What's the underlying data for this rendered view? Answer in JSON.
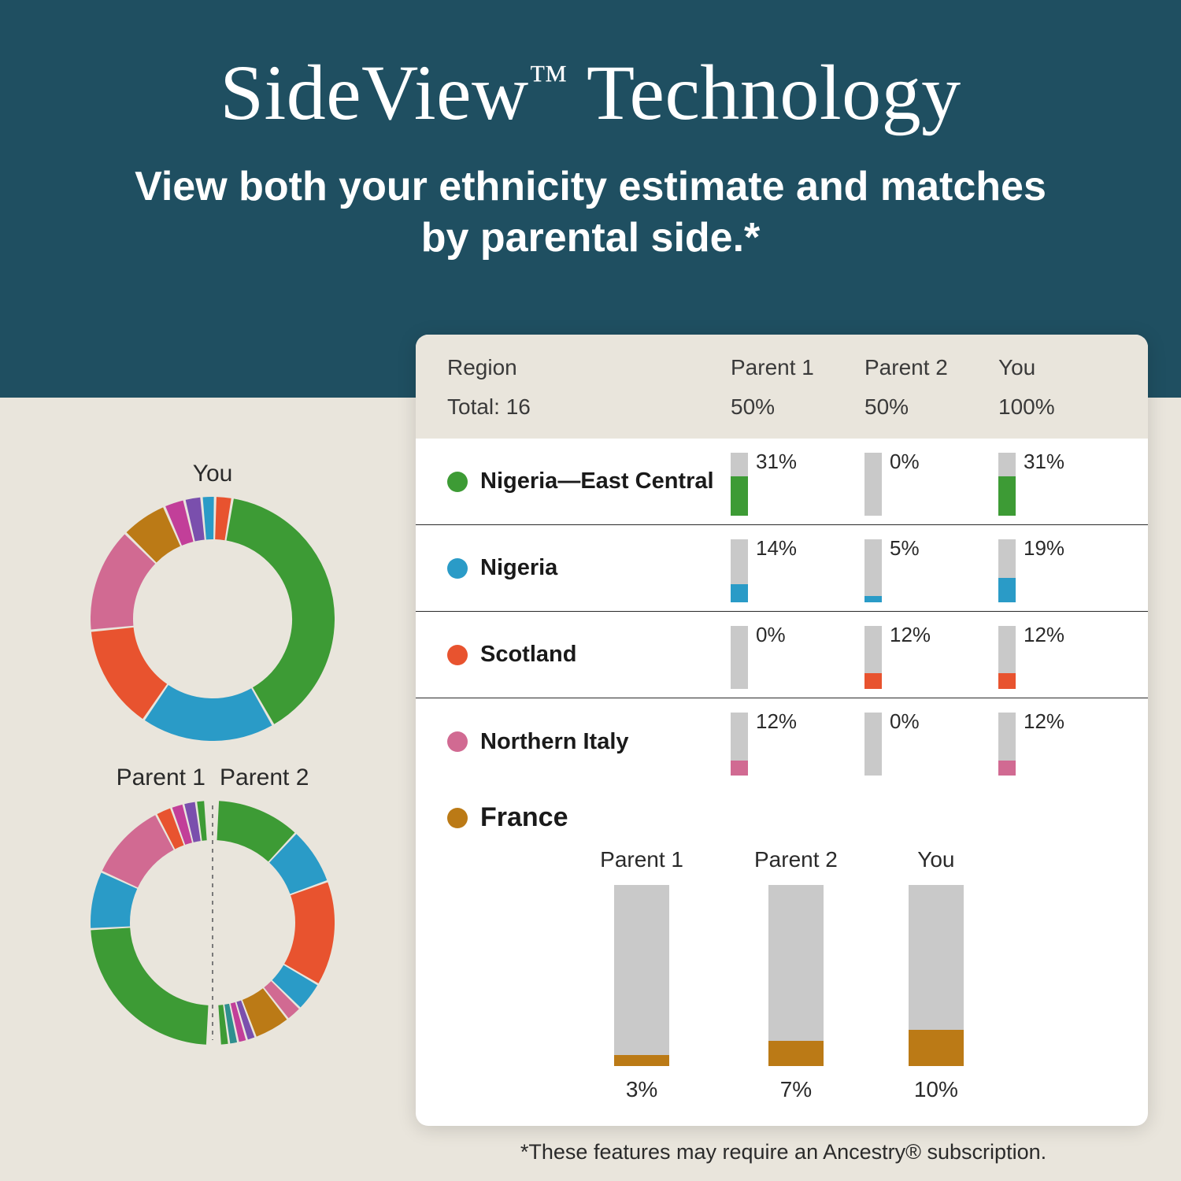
{
  "hero": {
    "title_main": "SideView",
    "title_tm": "™",
    "title_tail": " Technology",
    "subtitle": "View both your ethnicity estimate and matches by parental side.*"
  },
  "colors": {
    "green": "#3d9b35",
    "blue": "#2a9bc7",
    "orange": "#e8532f",
    "pink": "#d16a92",
    "brown": "#bb7a16",
    "purple": "#7a4fad",
    "magenta": "#c23f99",
    "teal": "#2f8f8f",
    "bar_bg": "#c9c9c9",
    "text": "#2a2a2a",
    "card_bg": "#ffffff",
    "page_bg": "#e9e5dc",
    "hero_bg": "#1f4f61"
  },
  "donut_you": {
    "label": "You",
    "size": 310,
    "stroke": 54,
    "segments": [
      {
        "color": "#3d9b35",
        "pct": 40
      },
      {
        "color": "#2a9bc7",
        "pct": 18
      },
      {
        "color": "#e8532f",
        "pct": 14
      },
      {
        "color": "#d16a92",
        "pct": 14
      },
      {
        "color": "#bb7a16",
        "pct": 6
      },
      {
        "color": "#c23f99",
        "pct": 2.5
      },
      {
        "color": "#7a4fad",
        "pct": 2
      },
      {
        "color": "#2a9bc7",
        "pct": 1.5
      },
      {
        "color": "#e8532f",
        "pct": 2
      }
    ]
  },
  "donut_parents": {
    "labels": [
      "Parent 1",
      "Parent 2"
    ],
    "size": 310,
    "stroke": 50,
    "left_segments": [
      {
        "color": "#3d9b35",
        "pct": 50
      },
      {
        "color": "#2a9bc7",
        "pct": 16
      },
      {
        "color": "#d16a92",
        "pct": 22
      },
      {
        "color": "#e8532f",
        "pct": 4
      },
      {
        "color": "#c23f99",
        "pct": 3
      },
      {
        "color": "#7a4fad",
        "pct": 3
      },
      {
        "color": "#3d9b35",
        "pct": 2
      }
    ],
    "right_segments": [
      {
        "color": "#3d9b35",
        "pct": 24
      },
      {
        "color": "#2a9bc7",
        "pct": 16
      },
      {
        "color": "#e8532f",
        "pct": 30
      },
      {
        "color": "#2a9bc7",
        "pct": 8
      },
      {
        "color": "#d16a92",
        "pct": 4
      },
      {
        "color": "#bb7a16",
        "pct": 10
      },
      {
        "color": "#7a4fad",
        "pct": 2
      },
      {
        "color": "#c23f99",
        "pct": 2
      },
      {
        "color": "#2f8f8f",
        "pct": 2
      },
      {
        "color": "#3d9b35",
        "pct": 2
      }
    ]
  },
  "table": {
    "header": {
      "region": "Region",
      "total": "Total: 16",
      "cols": [
        "Parent 1",
        "Parent 2",
        "You"
      ],
      "col_pcts": [
        "50%",
        "50%",
        "100%"
      ]
    },
    "mini_bar_scale_max": 50,
    "rows": [
      {
        "name": "Nigeria—East Central",
        "color": "#3d9b35",
        "vals": [
          31,
          0,
          31
        ]
      },
      {
        "name": "Nigeria",
        "color": "#2a9bc7",
        "vals": [
          14,
          5,
          19
        ]
      },
      {
        "name": "Scotland",
        "color": "#e8532f",
        "vals": [
          0,
          12,
          12
        ]
      },
      {
        "name": "Northern Italy",
        "color": "#d16a92",
        "vals": [
          12,
          0,
          12
        ]
      }
    ]
  },
  "detail": {
    "name": "France",
    "color": "#bb7a16",
    "labels": [
      "Parent 1",
      "Parent 2",
      "You"
    ],
    "vals": [
      3,
      7,
      10
    ],
    "bar_scale_max": 50
  },
  "footnote": "*These features may require an Ancestry® subscription."
}
